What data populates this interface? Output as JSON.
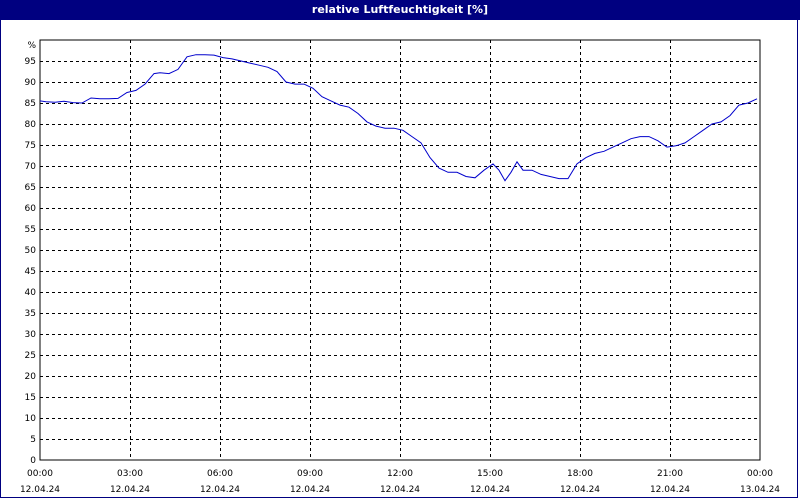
{
  "window": {
    "title": "relative Luftfeuchtigkeit [%]"
  },
  "chart_data": {
    "type": "line",
    "title": "relative Luftfeuchtigkeit [%]",
    "ylabel": "%",
    "xlabel": "",
    "ylim": [
      0,
      100
    ],
    "xlim": [
      0,
      24
    ],
    "grid": true,
    "colors": {
      "line": "#0000cc",
      "grid": "#000000",
      "axis": "#000000",
      "title_bg": "#000080"
    },
    "y_ticks": [
      0,
      5,
      10,
      15,
      20,
      25,
      30,
      35,
      40,
      45,
      50,
      55,
      60,
      65,
      70,
      75,
      80,
      85,
      90,
      95
    ],
    "x_ticks": [
      {
        "time": "00:00",
        "date": "12.04.24",
        "h": 0
      },
      {
        "time": "03:00",
        "date": "12.04.24",
        "h": 3
      },
      {
        "time": "06:00",
        "date": "12.04.24",
        "h": 6
      },
      {
        "time": "09:00",
        "date": "12.04.24",
        "h": 9
      },
      {
        "time": "12:00",
        "date": "12.04.24",
        "h": 12
      },
      {
        "time": "15:00",
        "date": "12.04.24",
        "h": 15
      },
      {
        "time": "18:00",
        "date": "12.04.24",
        "h": 18
      },
      {
        "time": "21:00",
        "date": "12.04.24",
        "h": 21
      },
      {
        "time": "00:00",
        "date": "13.04.24",
        "h": 24
      }
    ],
    "series": [
      {
        "x": [
          0,
          0.2,
          0.5,
          0.8,
          1.1,
          1.4,
          1.7,
          2.0,
          2.3,
          2.6,
          2.9,
          3.2,
          3.5,
          3.8,
          4.0,
          4.3,
          4.6,
          4.9,
          5.2,
          5.5,
          5.8,
          6.1,
          6.4,
          6.7,
          7.0,
          7.3,
          7.6,
          7.9,
          8.2,
          8.5,
          8.8,
          9.1,
          9.4,
          9.7,
          10.0,
          10.3,
          10.6,
          10.9,
          11.2,
          11.5,
          11.8,
          12.1,
          12.4,
          12.7,
          13.0,
          13.3,
          13.6,
          13.9,
          14.2,
          14.5,
          14.8,
          15.1,
          15.3,
          15.5,
          15.7,
          15.9,
          16.1,
          16.4,
          16.7,
          17.0,
          17.3,
          17.6,
          17.9,
          18.2,
          18.5,
          18.8,
          19.1,
          19.4,
          19.7,
          20.0,
          20.3,
          20.6,
          20.9,
          21.2,
          21.5,
          21.8,
          22.1,
          22.4,
          22.7,
          23.0,
          23.3,
          23.6,
          23.9
        ],
        "values": [
          85.5,
          85.3,
          85.2,
          85.4,
          85.1,
          85.0,
          86.2,
          86.0,
          86.0,
          86.1,
          87.5,
          88.0,
          89.5,
          92.0,
          92.2,
          92.0,
          93.0,
          96.0,
          96.5,
          96.5,
          96.4,
          95.8,
          95.5,
          95.0,
          94.5,
          94.0,
          93.5,
          92.5,
          90.0,
          89.5,
          89.5,
          88.5,
          86.5,
          85.5,
          84.5,
          84.0,
          82.5,
          80.5,
          79.5,
          79.0,
          79.0,
          78.5,
          77.0,
          75.5,
          72.0,
          69.5,
          68.5,
          68.5,
          67.5,
          67.2,
          69.0,
          70.5,
          69.0,
          66.5,
          68.5,
          71.0,
          69.0,
          69.0,
          68.0,
          67.5,
          67.0,
          67.0,
          70.5,
          72.0,
          73.0,
          73.5,
          74.5,
          75.5,
          76.5,
          77.0,
          77.0,
          76.0,
          74.5,
          74.8,
          75.5,
          77.0,
          78.5,
          80.0,
          80.5,
          82.0,
          84.5,
          85.0,
          86.0
        ]
      }
    ]
  }
}
